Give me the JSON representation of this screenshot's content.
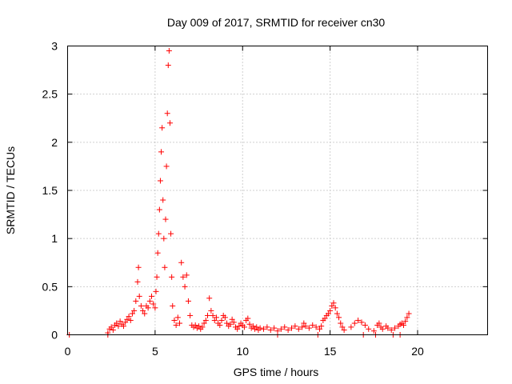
{
  "chart_data": {
    "type": "scatter",
    "title": "Day 009 of 2017, SRMTID for receiver cn30",
    "xlabel": "GPS time / hours",
    "ylabel": "SRMTID / TECUs",
    "xlim": [
      0,
      24
    ],
    "ylim": [
      0,
      3
    ],
    "x_ticks": [
      0,
      5,
      10,
      15,
      20
    ],
    "y_ticks": [
      0,
      0.5,
      1,
      1.5,
      2,
      2.5,
      3
    ],
    "x_tick_labels": [
      "0",
      "5",
      "10",
      "15",
      "20"
    ],
    "y_tick_labels": [
      "0",
      "0.5",
      "1",
      "1.5",
      "2",
      "2.5",
      "3"
    ],
    "grid": true,
    "marker": "+",
    "color": "#ff0000",
    "series": [
      {
        "name": "SRMTID",
        "points": [
          [
            0.1,
            0.0
          ],
          [
            2.3,
            0.02
          ],
          [
            2.4,
            0.06
          ],
          [
            2.5,
            0.08
          ],
          [
            2.6,
            0.05
          ],
          [
            2.7,
            0.1
          ],
          [
            2.8,
            0.12
          ],
          [
            2.9,
            0.09
          ],
          [
            3.0,
            0.14
          ],
          [
            3.1,
            0.11
          ],
          [
            3.2,
            0.09
          ],
          [
            3.3,
            0.13
          ],
          [
            3.4,
            0.16
          ],
          [
            3.5,
            0.19
          ],
          [
            3.6,
            0.15
          ],
          [
            3.7,
            0.22
          ],
          [
            3.8,
            0.25
          ],
          [
            3.9,
            0.35
          ],
          [
            4.0,
            0.55
          ],
          [
            4.05,
            0.7
          ],
          [
            4.1,
            0.4
          ],
          [
            4.2,
            0.3
          ],
          [
            4.3,
            0.25
          ],
          [
            4.4,
            0.22
          ],
          [
            4.5,
            0.3
          ],
          [
            4.6,
            0.28
          ],
          [
            4.7,
            0.35
          ],
          [
            4.8,
            0.4
          ],
          [
            4.9,
            0.32
          ],
          [
            5.0,
            0.28
          ],
          [
            5.05,
            0.45
          ],
          [
            5.1,
            0.6
          ],
          [
            5.15,
            0.85
          ],
          [
            5.2,
            1.05
          ],
          [
            5.25,
            1.3
          ],
          [
            5.3,
            1.6
          ],
          [
            5.35,
            1.9
          ],
          [
            5.4,
            2.15
          ],
          [
            5.45,
            1.4
          ],
          [
            5.5,
            1.0
          ],
          [
            5.55,
            0.7
          ],
          [
            5.6,
            1.2
          ],
          [
            5.65,
            1.75
          ],
          [
            5.7,
            2.3
          ],
          [
            5.75,
            2.8
          ],
          [
            5.8,
            2.95
          ],
          [
            5.85,
            2.2
          ],
          [
            5.9,
            1.05
          ],
          [
            5.95,
            0.6
          ],
          [
            6.0,
            0.3
          ],
          [
            6.1,
            0.15
          ],
          [
            6.2,
            0.1
          ],
          [
            6.3,
            0.18
          ],
          [
            6.4,
            0.12
          ],
          [
            6.5,
            0.75
          ],
          [
            6.6,
            0.6
          ],
          [
            6.7,
            0.5
          ],
          [
            6.8,
            0.62
          ],
          [
            6.9,
            0.35
          ],
          [
            7.0,
            0.2
          ],
          [
            7.1,
            0.1
          ],
          [
            7.2,
            0.08
          ],
          [
            7.3,
            0.1
          ],
          [
            7.4,
            0.07
          ],
          [
            7.5,
            0.09
          ],
          [
            7.6,
            0.06
          ],
          [
            7.7,
            0.08
          ],
          [
            7.8,
            0.12
          ],
          [
            7.9,
            0.15
          ],
          [
            8.0,
            0.2
          ],
          [
            8.1,
            0.38
          ],
          [
            8.2,
            0.25
          ],
          [
            8.3,
            0.2
          ],
          [
            8.4,
            0.15
          ],
          [
            8.5,
            0.18
          ],
          [
            8.6,
            0.12
          ],
          [
            8.7,
            0.1
          ],
          [
            8.8,
            0.15
          ],
          [
            8.9,
            0.2
          ],
          [
            9.0,
            0.18
          ],
          [
            9.1,
            0.12
          ],
          [
            9.2,
            0.09
          ],
          [
            9.3,
            0.11
          ],
          [
            9.4,
            0.16
          ],
          [
            9.5,
            0.13
          ],
          [
            9.6,
            0.08
          ],
          [
            9.7,
            0.06
          ],
          [
            9.8,
            0.09
          ],
          [
            9.9,
            0.12
          ],
          [
            10.0,
            0.1
          ],
          [
            10.1,
            0.08
          ],
          [
            10.2,
            0.15
          ],
          [
            10.3,
            0.17
          ],
          [
            10.4,
            0.11
          ],
          [
            10.5,
            0.07
          ],
          [
            10.6,
            0.09
          ],
          [
            10.7,
            0.06
          ],
          [
            10.8,
            0.08
          ],
          [
            10.9,
            0.05
          ],
          [
            11.0,
            0.07
          ],
          [
            11.2,
            0.06
          ],
          [
            11.4,
            0.08
          ],
          [
            11.6,
            0.05
          ],
          [
            11.8,
            0.07
          ],
          [
            12.0,
            0.04
          ],
          [
            12.2,
            0.06
          ],
          [
            12.4,
            0.08
          ],
          [
            12.6,
            0.05
          ],
          [
            12.8,
            0.07
          ],
          [
            13.0,
            0.09
          ],
          [
            13.2,
            0.06
          ],
          [
            13.4,
            0.08
          ],
          [
            13.5,
            0.12
          ],
          [
            13.6,
            0.09
          ],
          [
            13.8,
            0.07
          ],
          [
            14.0,
            0.1
          ],
          [
            14.2,
            0.08
          ],
          [
            14.4,
            0.06
          ],
          [
            14.5,
            0.09
          ],
          [
            14.6,
            0.15
          ],
          [
            14.7,
            0.17
          ],
          [
            14.8,
            0.2
          ],
          [
            14.9,
            0.22
          ],
          [
            15.0,
            0.25
          ],
          [
            15.1,
            0.3
          ],
          [
            15.2,
            0.33
          ],
          [
            15.3,
            0.28
          ],
          [
            15.4,
            0.22
          ],
          [
            15.5,
            0.18
          ],
          [
            15.6,
            0.12
          ],
          [
            15.7,
            0.08
          ],
          [
            15.8,
            0.05
          ],
          [
            16.2,
            0.08
          ],
          [
            16.4,
            0.12
          ],
          [
            16.6,
            0.15
          ],
          [
            16.8,
            0.13
          ],
          [
            17.0,
            0.1
          ],
          [
            17.2,
            0.06
          ],
          [
            17.5,
            0.04
          ],
          [
            17.7,
            0.1
          ],
          [
            17.8,
            0.12
          ],
          [
            17.9,
            0.08
          ],
          [
            18.0,
            0.06
          ],
          [
            18.2,
            0.09
          ],
          [
            18.3,
            0.07
          ],
          [
            18.5,
            0.05
          ],
          [
            18.7,
            0.07
          ],
          [
            18.9,
            0.09
          ],
          [
            19.0,
            0.11
          ],
          [
            19.1,
            0.12
          ],
          [
            19.2,
            0.1
          ],
          [
            19.3,
            0.14
          ],
          [
            19.4,
            0.18
          ],
          [
            19.5,
            0.22
          ],
          [
            17.6,
            0.0
          ],
          [
            18.6,
            0.0
          ],
          [
            19.0,
            0.0
          ],
          [
            12.0,
            0.0
          ],
          [
            14.3,
            0.0
          ],
          [
            2.3,
            0.0
          ],
          [
            16.9,
            0.0
          ]
        ]
      }
    ]
  }
}
